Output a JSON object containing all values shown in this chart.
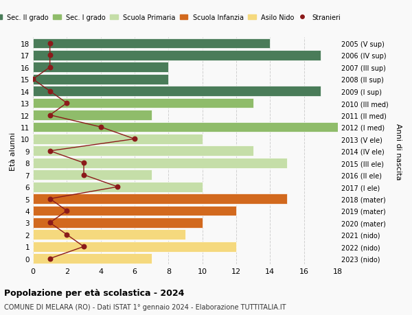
{
  "ages": [
    18,
    17,
    16,
    15,
    14,
    13,
    12,
    11,
    10,
    9,
    8,
    7,
    6,
    5,
    4,
    3,
    2,
    1,
    0
  ],
  "years_labels": [
    "2005 (V sup)",
    "2006 (IV sup)",
    "2007 (III sup)",
    "2008 (II sup)",
    "2009 (I sup)",
    "2010 (III med)",
    "2011 (II med)",
    "2012 (I med)",
    "2013 (V ele)",
    "2014 (IV ele)",
    "2015 (III ele)",
    "2016 (II ele)",
    "2017 (I ele)",
    "2018 (mater)",
    "2019 (mater)",
    "2020 (mater)",
    "2021 (nido)",
    "2022 (nido)",
    "2023 (nido)"
  ],
  "bar_values": [
    14,
    17,
    8,
    8,
    17,
    13,
    7,
    18,
    10,
    13,
    15,
    7,
    10,
    15,
    12,
    10,
    9,
    12,
    7
  ],
  "bar_colors": [
    "#4a7c59",
    "#4a7c59",
    "#4a7c59",
    "#4a7c59",
    "#4a7c59",
    "#8fbc6a",
    "#8fbc6a",
    "#8fbc6a",
    "#c5dea8",
    "#c5dea8",
    "#c5dea8",
    "#c5dea8",
    "#c5dea8",
    "#d2691e",
    "#d2691e",
    "#d2691e",
    "#f5d97e",
    "#f5d97e",
    "#f5d97e"
  ],
  "stranieri_values": [
    1,
    1,
    1,
    0,
    1,
    2,
    1,
    4,
    6,
    1,
    3,
    3,
    5,
    1,
    2,
    1,
    2,
    3,
    1
  ],
  "legend_labels": [
    "Sec. II grado",
    "Sec. I grado",
    "Scuola Primaria",
    "Scuola Infanzia",
    "Asilo Nido",
    "Stranieri"
  ],
  "legend_colors": [
    "#4a7c59",
    "#8fbc6a",
    "#c5dea8",
    "#d2691e",
    "#f5d97e",
    "#9b1c1c"
  ],
  "ylabel_left": "Età alunni",
  "ylabel_right": "Anni di nascita",
  "title1": "Popolazione per età scolastica - 2024",
  "title2": "COMUNE DI MELARA (RO) - Dati ISTAT 1° gennaio 2024 - Elaborazione TUTTITALIA.IT",
  "xlim": [
    0,
    18
  ],
  "background_color": "#f9f9f9",
  "grid_color": "#cccccc",
  "stranieri_color": "#8b1a1a"
}
